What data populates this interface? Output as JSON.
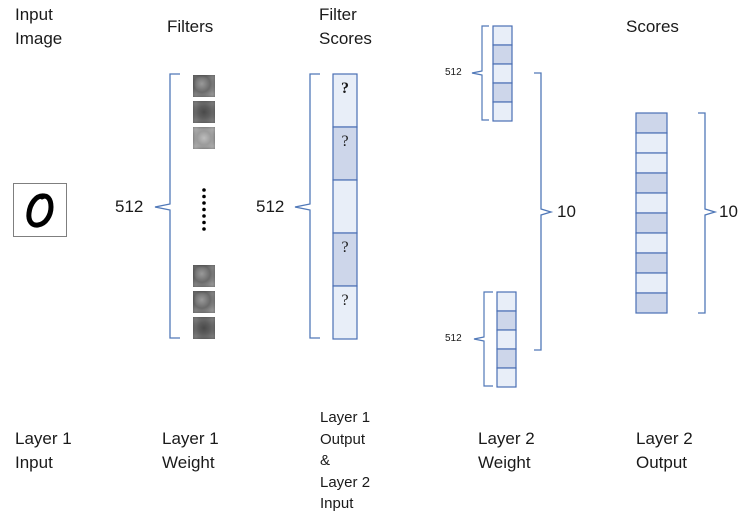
{
  "columns": {
    "input_title": "Input\nImage",
    "filters_title": "Filters",
    "filter_scores_title": "Filter\nScores",
    "scores_title": "Scores"
  },
  "bottom_labels": {
    "layer1_input": "Layer 1\nInput",
    "layer1_weight": "Layer 1\nWeight",
    "layer1_output_layer2_input": "Layer 1\nOutput\n&\nLayer 2\nInput",
    "layer2_weight": "Layer 2\nWeight",
    "layer2_output": "Layer 2\nOutput"
  },
  "counts": {
    "filters": "512",
    "filter_scores": "512",
    "weight_top": "512",
    "weight_bottom": "512",
    "weight_classes": "10",
    "scores_classes": "10"
  },
  "score_cells": [
    "?",
    "?",
    "",
    "?",
    "?"
  ],
  "colors": {
    "cell_light": "#e8eef8",
    "cell_dark": "#cdd6ea",
    "cell_border": "#4a6fb4",
    "brace": "#5078b8"
  }
}
